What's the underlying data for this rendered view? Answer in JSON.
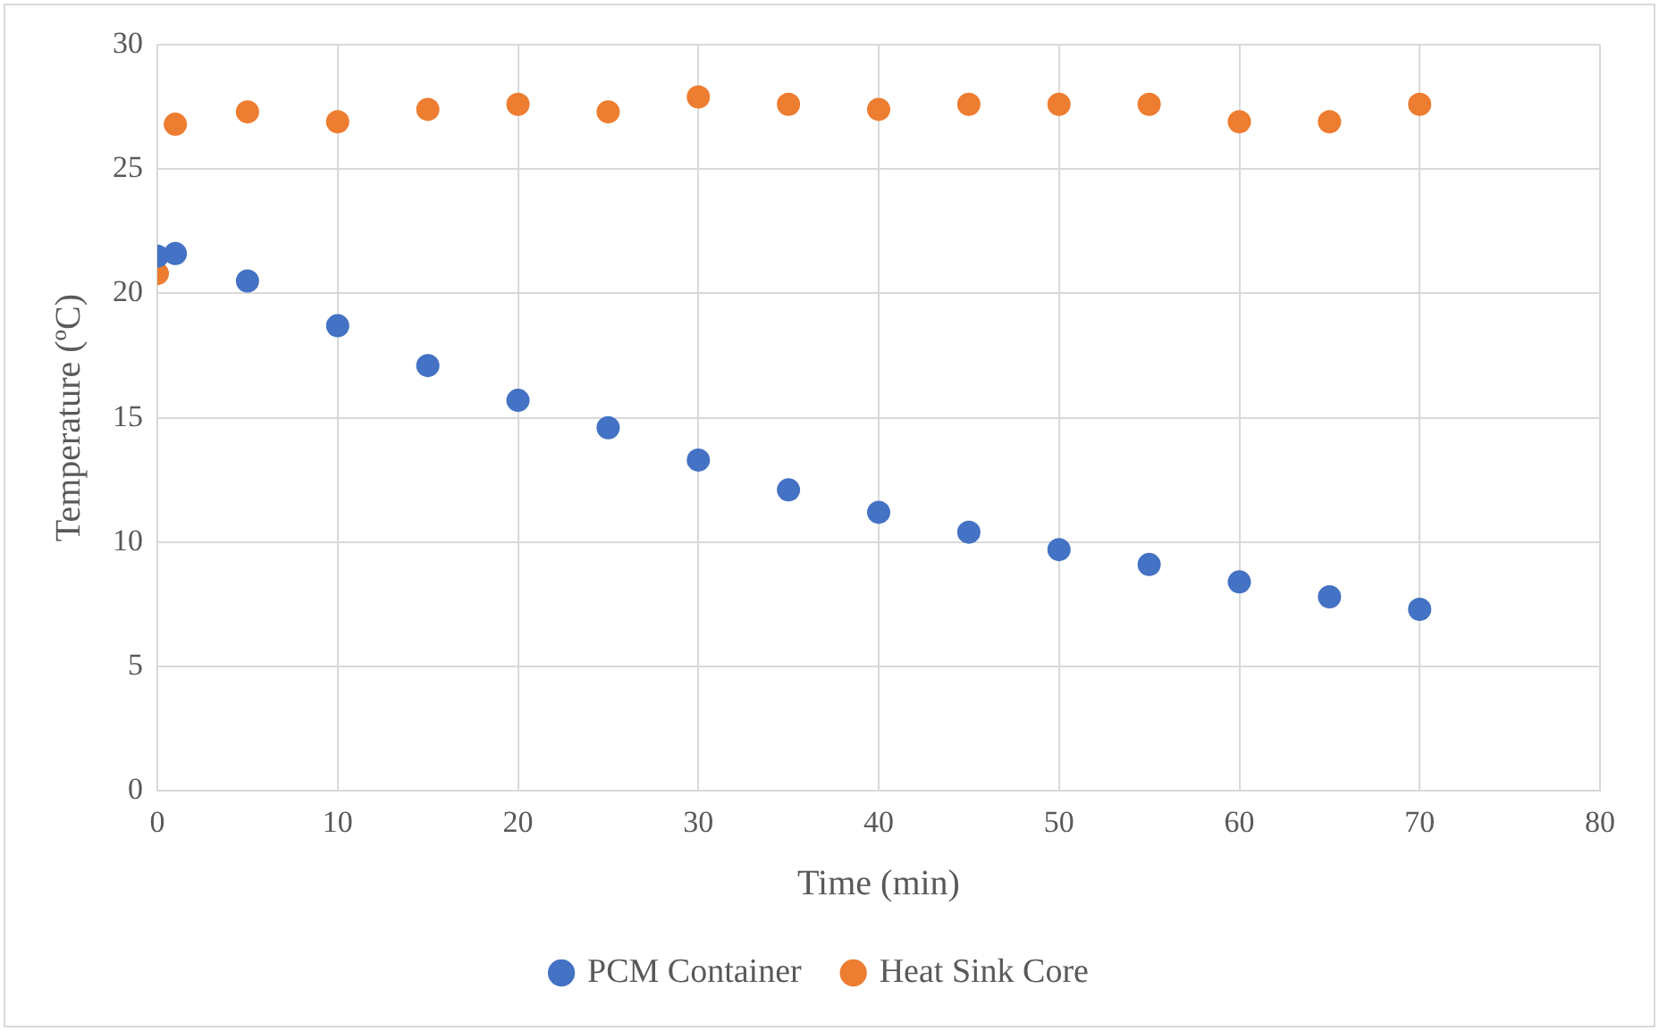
{
  "chart_data": {
    "type": "scatter",
    "xlabel": "Time (min)",
    "ylabel": "Temperature (ºC)",
    "xlim": [
      0,
      80
    ],
    "xticks": [
      0,
      10,
      20,
      30,
      40,
      50,
      60,
      70,
      80
    ],
    "ylim": [
      0,
      30
    ],
    "yticks": [
      0,
      5,
      10,
      15,
      20,
      25,
      30
    ],
    "x": [
      0,
      1,
      5,
      10,
      15,
      20,
      25,
      30,
      35,
      40,
      45,
      50,
      55,
      60,
      65,
      70
    ],
    "series": [
      {
        "name": "PCM Container",
        "color": "#4472c4",
        "values": [
          21.5,
          21.6,
          20.5,
          18.7,
          17.1,
          15.7,
          14.6,
          13.3,
          12.1,
          11.2,
          10.4,
          9.7,
          9.1,
          8.4,
          7.8,
          7.3
        ]
      },
      {
        "name": "Heat Sink Core",
        "color": "#ed7d31",
        "values": [
          20.8,
          26.8,
          27.3,
          26.9,
          27.4,
          27.6,
          27.3,
          27.9,
          27.6,
          27.4,
          27.6,
          27.6,
          27.6,
          26.9,
          26.9,
          27.6
        ]
      }
    ],
    "grid": true,
    "legend": "bottom",
    "marker": "circle"
  }
}
